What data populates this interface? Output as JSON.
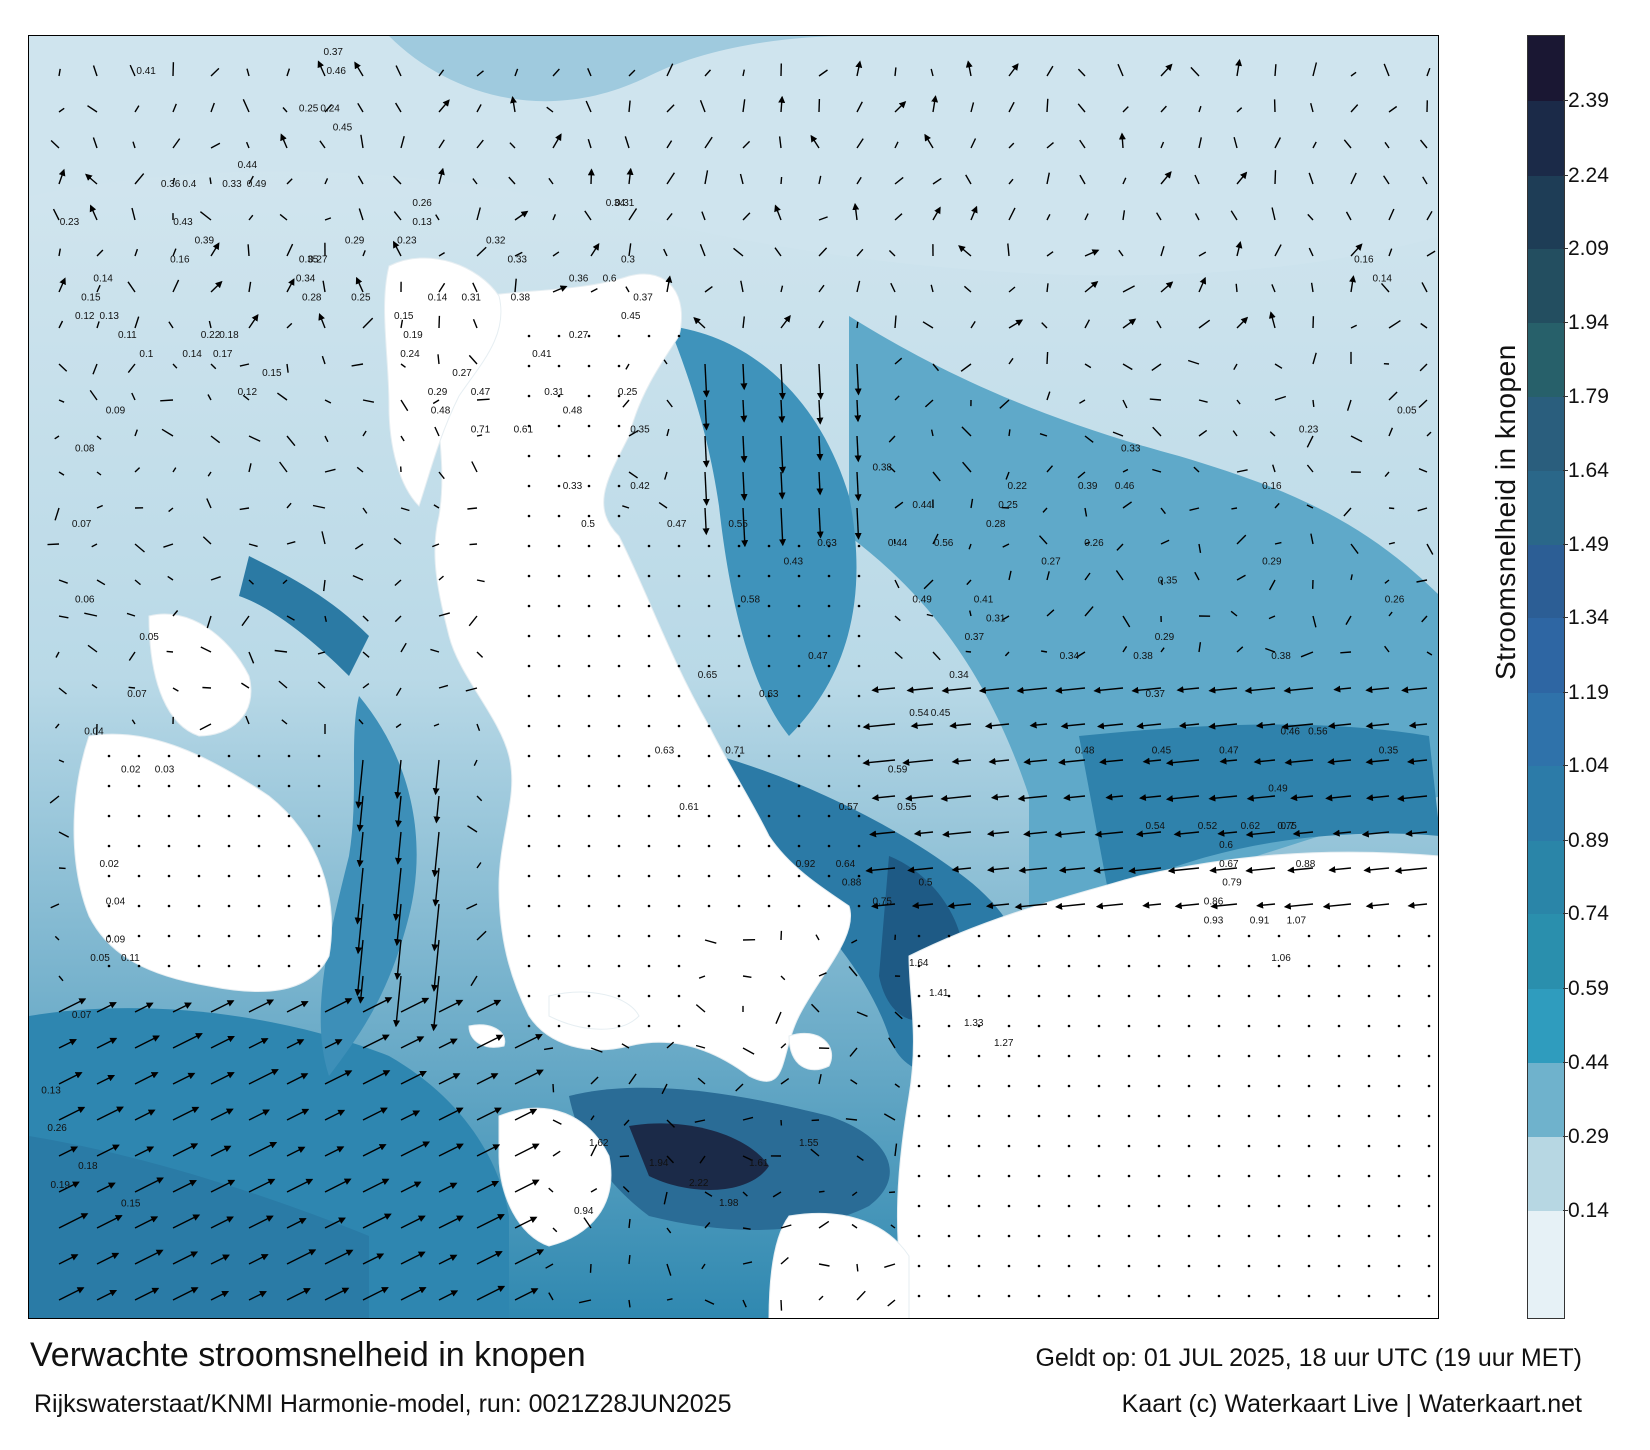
{
  "caption": {
    "title": "Verwachte stroomsnelheid in knopen",
    "source": "Rijkswaterstaat/KNMI Harmonie-model, run: 0021Z28JUN2025",
    "valid": "Geldt op: 01 JUL 2025, 18 uur UTC (19 uur MET)",
    "credit": "Kaart (c) Waterkaart Live | Waterkaart.net"
  },
  "legend": {
    "title": "Stroomsnelheid in knopen",
    "ticks": [
      "2.39",
      "2.24",
      "2.09",
      "1.94",
      "1.79",
      "1.64",
      "1.49",
      "1.34",
      "1.19",
      "1.04",
      "0.89",
      "0.74",
      "0.59",
      "0.44",
      "0.29",
      "0.14"
    ],
    "colors": [
      "#1a1733",
      "#1b2a48",
      "#1e3d56",
      "#234e60",
      "#27606a",
      "#2a5e7d",
      "#2a6789",
      "#2c5e95",
      "#2e66a3",
      "#2f72aa",
      "#2c7ba8",
      "#2a85a8",
      "#2a8fad",
      "#2f9cbe",
      "#6fb2cc",
      "#b7d7e3",
      "#e6f1f6"
    ]
  },
  "map": {
    "colors": {
      "land": "#ffffff",
      "sea_light": "#dcebf2",
      "sea_mid": "#8fc3d8",
      "sea_deep": "#2e8cb3",
      "sea_fast": "#23688f",
      "sea_max": "#1b2a48",
      "arrow": "#000000"
    },
    "labels": [
      {
        "t": "0.41",
        "x": 3.5,
        "y": 66
      },
      {
        "t": "0.22",
        "x": 5.6,
        "y": 52
      },
      {
        "t": "0.36",
        "x": 4.3,
        "y": 60
      },
      {
        "t": "0.4",
        "x": 5.0,
        "y": 60
      },
      {
        "t": "0.23",
        "x": 1.0,
        "y": 58
      },
      {
        "t": "0.43",
        "x": 4.7,
        "y": 58
      },
      {
        "t": "0.39",
        "x": 5.4,
        "y": 57
      },
      {
        "t": "0.16",
        "x": 4.6,
        "y": 56
      },
      {
        "t": "0.14",
        "x": 2.1,
        "y": 55
      },
      {
        "t": "0.15",
        "x": 1.7,
        "y": 54
      },
      {
        "t": "0.12",
        "x": 1.5,
        "y": 53
      },
      {
        "t": "0.13",
        "x": 2.3,
        "y": 53
      },
      {
        "t": "0.11",
        "x": 2.9,
        "y": 52
      },
      {
        "t": "0.18",
        "x": 6.2,
        "y": 52
      },
      {
        "t": "0.17",
        "x": 6.0,
        "y": 51
      },
      {
        "t": "0.1",
        "x": 3.6,
        "y": 51
      },
      {
        "t": "0.14",
        "x": 5.0,
        "y": 51
      },
      {
        "t": "0.12",
        "x": 6.8,
        "y": 49
      },
      {
        "t": "0.15",
        "x": 7.6,
        "y": 50
      },
      {
        "t": "0.09",
        "x": 2.5,
        "y": 48
      },
      {
        "t": "0.08",
        "x": 1.5,
        "y": 46
      },
      {
        "t": "0.07",
        "x": 1.4,
        "y": 42
      },
      {
        "t": "0.06",
        "x": 1.5,
        "y": 38
      },
      {
        "t": "0.05",
        "x": 3.6,
        "y": 36
      },
      {
        "t": "0.07",
        "x": 3.2,
        "y": 33
      },
      {
        "t": "0.04",
        "x": 1.8,
        "y": 31
      },
      {
        "t": "0.02",
        "x": 3.0,
        "y": 29
      },
      {
        "t": "0.03",
        "x": 4.1,
        "y": 29
      },
      {
        "t": "0.02",
        "x": 2.3,
        "y": 24
      },
      {
        "t": "0.04",
        "x": 2.5,
        "y": 22
      },
      {
        "t": "0.09",
        "x": 2.5,
        "y": 20
      },
      {
        "t": "0.05",
        "x": 2.0,
        "y": 19
      },
      {
        "t": "0.11",
        "x": 3.0,
        "y": 19
      },
      {
        "t": "0.07",
        "x": 1.4,
        "y": 16
      },
      {
        "t": "0.13",
        "x": 0.4,
        "y": 12
      },
      {
        "t": "0.19",
        "x": 0.7,
        "y": 7
      },
      {
        "t": "0.26",
        "x": 0.6,
        "y": 10
      },
      {
        "t": "0.18",
        "x": 1.6,
        "y": 8
      },
      {
        "t": "0.15",
        "x": 3.0,
        "y": 6
      },
      {
        "t": "0.37",
        "x": 9.6,
        "y": 67
      },
      {
        "t": "0.46",
        "x": 9.7,
        "y": 66
      },
      {
        "t": "0.24",
        "x": 9.5,
        "y": 64
      },
      {
        "t": "0.25",
        "x": 8.8,
        "y": 64
      },
      {
        "t": "0.45",
        "x": 9.9,
        "y": 63
      },
      {
        "t": "0.44",
        "x": 6.8,
        "y": 61
      },
      {
        "t": "0.49",
        "x": 7.1,
        "y": 60
      },
      {
        "t": "0.33",
        "x": 6.3,
        "y": 60
      },
      {
        "t": "0.26",
        "x": 12.5,
        "y": 59
      },
      {
        "t": "0.13",
        "x": 12.5,
        "y": 58
      },
      {
        "t": "0.23",
        "x": 12.0,
        "y": 57
      },
      {
        "t": "0.29",
        "x": 10.3,
        "y": 57
      },
      {
        "t": "0.35",
        "x": 8.8,
        "y": 56
      },
      {
        "t": "0.27",
        "x": 9.1,
        "y": 56
      },
      {
        "t": "0.28",
        "x": 8.9,
        "y": 54
      },
      {
        "t": "0.34",
        "x": 8.7,
        "y": 55
      },
      {
        "t": "0.25",
        "x": 10.5,
        "y": 54
      },
      {
        "t": "0.15",
        "x": 11.9,
        "y": 53
      },
      {
        "t": "0.14",
        "x": 13.0,
        "y": 54
      },
      {
        "t": "0.31",
        "x": 14.1,
        "y": 54
      },
      {
        "t": "0.19",
        "x": 12.2,
        "y": 52
      },
      {
        "t": "0.24",
        "x": 12.1,
        "y": 51
      },
      {
        "t": "0.29",
        "x": 13.0,
        "y": 49
      },
      {
        "t": "0.27",
        "x": 13.8,
        "y": 50
      },
      {
        "t": "0.47",
        "x": 14.4,
        "y": 49
      },
      {
        "t": "0.48",
        "x": 13.1,
        "y": 48
      },
      {
        "t": "0.71",
        "x": 14.4,
        "y": 47
      },
      {
        "t": "0.61",
        "x": 15.8,
        "y": 47
      },
      {
        "t": "0.48",
        "x": 17.4,
        "y": 48
      },
      {
        "t": "0.33",
        "x": 17.4,
        "y": 44
      },
      {
        "t": "0.35",
        "x": 19.6,
        "y": 47
      },
      {
        "t": "0.31",
        "x": 16.8,
        "y": 49
      },
      {
        "t": "0.41",
        "x": 16.4,
        "y": 51
      },
      {
        "t": "0.27",
        "x": 17.6,
        "y": 52
      },
      {
        "t": "0.25",
        "x": 19.2,
        "y": 49
      },
      {
        "t": "0.45",
        "x": 19.3,
        "y": 53
      },
      {
        "t": "0.37",
        "x": 19.7,
        "y": 54
      },
      {
        "t": "0.6",
        "x": 18.7,
        "y": 55
      },
      {
        "t": "0.38",
        "x": 15.7,
        "y": 54
      },
      {
        "t": "0.36",
        "x": 17.6,
        "y": 55
      },
      {
        "t": "0.33",
        "x": 15.6,
        "y": 56
      },
      {
        "t": "0.32",
        "x": 14.9,
        "y": 57
      },
      {
        "t": "0.3",
        "x": 19.3,
        "y": 56
      },
      {
        "t": "0.31",
        "x": 19.1,
        "y": 59
      },
      {
        "t": "0.34",
        "x": 18.8,
        "y": 59
      },
      {
        "t": "0.42",
        "x": 19.6,
        "y": 44
      },
      {
        "t": "0.5",
        "x": 18.0,
        "y": 42
      },
      {
        "t": "0.47",
        "x": 20.8,
        "y": 42
      },
      {
        "t": "0.55",
        "x": 22.8,
        "y": 42
      },
      {
        "t": "0.63",
        "x": 25.7,
        "y": 41
      },
      {
        "t": "0.44",
        "x": 28.0,
        "y": 41
      },
      {
        "t": "0.43",
        "x": 24.6,
        "y": 40
      },
      {
        "t": "0.58",
        "x": 23.2,
        "y": 38
      },
      {
        "t": "0.47",
        "x": 25.4,
        "y": 35
      },
      {
        "t": "0.65",
        "x": 21.8,
        "y": 34
      },
      {
        "t": "0.63",
        "x": 23.8,
        "y": 33
      },
      {
        "t": "0.71",
        "x": 22.7,
        "y": 30
      },
      {
        "t": "0.63",
        "x": 20.4,
        "y": 30
      },
      {
        "t": "0.61",
        "x": 21.2,
        "y": 27
      },
      {
        "t": "0.57",
        "x": 26.4,
        "y": 27
      },
      {
        "t": "0.64",
        "x": 26.3,
        "y": 24
      },
      {
        "t": "0.92",
        "x": 25.0,
        "y": 24
      },
      {
        "t": "0.75",
        "x": 27.5,
        "y": 22
      },
      {
        "t": "0.5",
        "x": 29.0,
        "y": 23
      },
      {
        "t": "0.88",
        "x": 26.5,
        "y": 23
      },
      {
        "t": "0.55",
        "x": 28.3,
        "y": 27
      },
      {
        "t": "0.59",
        "x": 28.0,
        "y": 29
      },
      {
        "t": "0.54",
        "x": 28.7,
        "y": 32
      },
      {
        "t": "0.45",
        "x": 29.4,
        "y": 32
      },
      {
        "t": "0.34",
        "x": 30.0,
        "y": 34
      },
      {
        "t": "0.37",
        "x": 30.5,
        "y": 36
      },
      {
        "t": "0.31",
        "x": 31.2,
        "y": 37
      },
      {
        "t": "0.49",
        "x": 28.8,
        "y": 38
      },
      {
        "t": "0.56",
        "x": 29.5,
        "y": 41
      },
      {
        "t": "0.44",
        "x": 28.8,
        "y": 43
      },
      {
        "t": "0.38",
        "x": 27.5,
        "y": 45
      },
      {
        "t": "0.41",
        "x": 30.8,
        "y": 38
      },
      {
        "t": "0.28",
        "x": 31.2,
        "y": 42
      },
      {
        "t": "0.25",
        "x": 31.6,
        "y": 43
      },
      {
        "t": "0.22",
        "x": 31.9,
        "y": 44
      },
      {
        "t": "0.35",
        "x": 36.8,
        "y": 39
      },
      {
        "t": "0.26",
        "x": 34.4,
        "y": 41
      },
      {
        "t": "0.39",
        "x": 34.2,
        "y": 44
      },
      {
        "t": "0.46",
        "x": 35.4,
        "y": 44
      },
      {
        "t": "0.33",
        "x": 35.6,
        "y": 46
      },
      {
        "t": "0.34",
        "x": 33.6,
        "y": 35
      },
      {
        "t": "0.38",
        "x": 36.0,
        "y": 35
      },
      {
        "t": "0.27",
        "x": 33.0,
        "y": 40
      },
      {
        "t": "0.29",
        "x": 36.7,
        "y": 36
      },
      {
        "t": "0.37",
        "x": 36.4,
        "y": 33
      },
      {
        "t": "0.45",
        "x": 36.6,
        "y": 30
      },
      {
        "t": "0.47",
        "x": 38.8,
        "y": 30
      },
      {
        "t": "0.48",
        "x": 34.1,
        "y": 30
      },
      {
        "t": "0.54",
        "x": 36.4,
        "y": 26
      },
      {
        "t": "0.52",
        "x": 38.1,
        "y": 26
      },
      {
        "t": "0.6",
        "x": 38.8,
        "y": 25
      },
      {
        "t": "0.62",
        "x": 39.5,
        "y": 26
      },
      {
        "t": "0.67",
        "x": 38.8,
        "y": 24
      },
      {
        "t": "0.79",
        "x": 38.9,
        "y": 23
      },
      {
        "t": "0.86",
        "x": 38.3,
        "y": 22
      },
      {
        "t": "0.93",
        "x": 38.3,
        "y": 21
      },
      {
        "t": "0.91",
        "x": 39.8,
        "y": 21
      },
      {
        "t": "1.06",
        "x": 40.5,
        "y": 19
      },
      {
        "t": "1.07",
        "x": 41.0,
        "y": 21
      },
      {
        "t": "0.7",
        "x": 40.8,
        "y": 26
      },
      {
        "t": "0.88",
        "x": 41.3,
        "y": 24
      },
      {
        "t": "0.75",
        "x": 40.7,
        "y": 26
      },
      {
        "t": "0.56",
        "x": 41.7,
        "y": 31
      },
      {
        "t": "0.46",
        "x": 40.8,
        "y": 31
      },
      {
        "t": "0.49",
        "x": 40.4,
        "y": 28
      },
      {
        "t": "0.38",
        "x": 40.5,
        "y": 35
      },
      {
        "t": "0.29",
        "x": 40.2,
        "y": 40
      },
      {
        "t": "0.16",
        "x": 40.2,
        "y": 44
      },
      {
        "t": "0.23",
        "x": 41.4,
        "y": 47
      },
      {
        "t": "0.35",
        "x": 44.0,
        "y": 30
      },
      {
        "t": "0.26",
        "x": 44.2,
        "y": 38
      },
      {
        "t": "0.05",
        "x": 44.6,
        "y": 48
      },
      {
        "t": "0.14",
        "x": 43.8,
        "y": 55
      },
      {
        "t": "0.16",
        "x": 43.2,
        "y": 56
      }
    ],
    "pins": [
      "0.94",
      "1.62",
      "1.94",
      "2.22",
      "1.98",
      "1.61",
      "1.55",
      "1.64",
      "1.41",
      "1.33",
      "1.27"
    ]
  }
}
